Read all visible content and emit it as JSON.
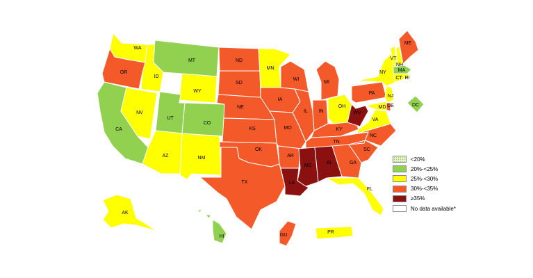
{
  "legend": [
    {
      "label": "<20%",
      "color": "#c8e6a0",
      "pattern": true
    },
    {
      "label": "20%-<25%",
      "color": "#92d050"
    },
    {
      "label": "25%-<30%",
      "color": "#ffff00"
    },
    {
      "label": "30%-<35%",
      "color": "#f4592a"
    },
    {
      "label": "≥35%",
      "color": "#8b1010"
    },
    {
      "label": "No data available*",
      "color": "#ffffff"
    }
  ],
  "states": {
    "WA": {
      "label": "WA",
      "category": 2
    },
    "OR": {
      "label": "OR",
      "category": 3
    },
    "CA": {
      "label": "CA",
      "category": 1
    },
    "ID": {
      "label": "ID",
      "category": 2
    },
    "NV": {
      "label": "NV",
      "category": 2
    },
    "MT": {
      "label": "MT",
      "category": 1
    },
    "WY": {
      "label": "WY",
      "category": 2
    },
    "UT": {
      "label": "UT",
      "category": 1
    },
    "CO": {
      "label": "CO",
      "category": 1
    },
    "AZ": {
      "label": "AZ",
      "category": 2
    },
    "NM": {
      "label": "NM",
      "category": 2
    },
    "ND": {
      "label": "ND",
      "category": 3
    },
    "SD": {
      "label": "SD",
      "category": 3
    },
    "NE": {
      "label": "NE",
      "category": 3
    },
    "KS": {
      "label": "KS",
      "category": 3
    },
    "OK": {
      "label": "OK",
      "category": 3
    },
    "TX": {
      "label": "TX",
      "category": 3
    },
    "MN": {
      "label": "MN",
      "category": 2
    },
    "IA": {
      "label": "IA",
      "category": 3
    },
    "MO": {
      "label": "MO",
      "category": 3
    },
    "AR": {
      "label": "AR",
      "category": 3
    },
    "LA": {
      "label": "LA",
      "category": 4
    },
    "WI": {
      "label": "WI",
      "category": 3
    },
    "IL": {
      "label": "IL",
      "category": 3
    },
    "MI": {
      "label": "MI",
      "category": 3
    },
    "IN": {
      "label": "IN",
      "category": 3
    },
    "OH": {
      "label": "OH",
      "category": 2
    },
    "KY": {
      "label": "KY",
      "category": 3
    },
    "TN": {
      "label": "TN",
      "category": 3
    },
    "MS": {
      "label": "MS",
      "category": 4
    },
    "AL": {
      "label": "AL",
      "category": 4
    },
    "GA": {
      "label": "GA",
      "category": 3
    },
    "FL": {
      "label": "FL",
      "category": 2
    },
    "SC": {
      "label": "SC",
      "category": 3
    },
    "NC": {
      "label": "NC",
      "category": 3
    },
    "VA": {
      "label": "VA",
      "category": 2
    },
    "WV": {
      "label": "WV",
      "category": 4
    },
    "PA": {
      "label": "PA",
      "category": 3
    },
    "NY": {
      "label": "NY",
      "category": 2
    },
    "VT": {
      "label": "VT",
      "category": 2
    },
    "NH": {
      "label": "NH",
      "category": 2
    },
    "ME": {
      "label": "ME",
      "category": 3
    },
    "MA": {
      "label": "MA",
      "category": 1
    },
    "RI": {
      "label": "RI",
      "category": 2
    },
    "CT": {
      "label": "CT",
      "category": 2
    },
    "NJ": {
      "label": "NJ",
      "category": 2
    },
    "DE": {
      "label": "DE",
      "category": 3
    },
    "MD": {
      "label": "MD",
      "category": 2
    },
    "DC": {
      "label": "DC",
      "category": 1
    },
    "AK": {
      "label": "AK",
      "category": 2
    },
    "HI": {
      "label": "HI",
      "category": 1
    },
    "GU": {
      "label": "GU",
      "category": 3
    },
    "PR": {
      "label": "PR",
      "category": 2
    }
  }
}
